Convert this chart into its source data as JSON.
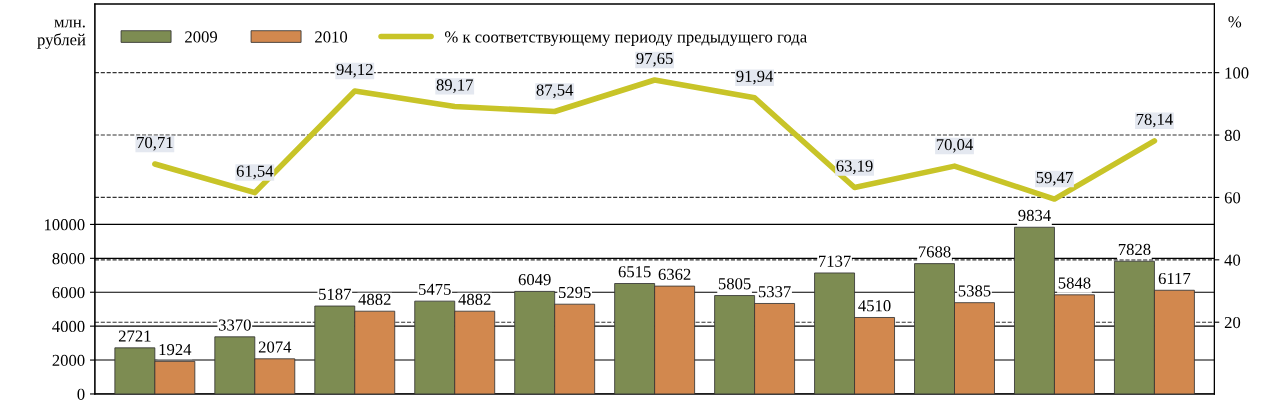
{
  "chart_data": {
    "type": "bar",
    "ylabel": "млн.\nрублей",
    "y2label": "%",
    "categories": [
      null,
      null,
      null,
      null,
      null,
      null,
      null,
      null,
      null,
      null,
      null
    ],
    "series": [
      {
        "name": "2009",
        "color": "#7d8c52",
        "values": [
          2721,
          3370,
          5187,
          5475,
          6049,
          6515,
          5805,
          7137,
          7688,
          9834,
          7828
        ]
      },
      {
        "name": "2010",
        "color": "#d2884e",
        "values": [
          1924,
          2074,
          4882,
          4882,
          5295,
          6362,
          5337,
          4510,
          5385,
          5848,
          6117
        ]
      },
      {
        "name": "% к соответствующему периоду предыдущего года",
        "type": "line",
        "axis": "y2",
        "color": "#c8c428",
        "values": [
          70.71,
          61.54,
          94.12,
          89.17,
          87.54,
          97.65,
          91.94,
          63.19,
          70.04,
          59.47,
          78.14
        ],
        "value_labels": [
          "70,71",
          "61,54",
          "94,12",
          "89,17",
          "87,54",
          "97,65",
          "91,94",
          "63,19",
          "70,04",
          "59,47",
          "78,14"
        ]
      }
    ],
    "ylim": [
      0,
      23000
    ],
    "yticks": [
      0,
      2000,
      4000,
      6000,
      8000,
      10000
    ],
    "y2lim": [
      -3,
      122
    ],
    "y2ticks": [
      20,
      40,
      60,
      80,
      100
    ],
    "grid": true,
    "legend": "top left",
    "data_labels": true,
    "marker": "none",
    "line_style": "solid"
  }
}
